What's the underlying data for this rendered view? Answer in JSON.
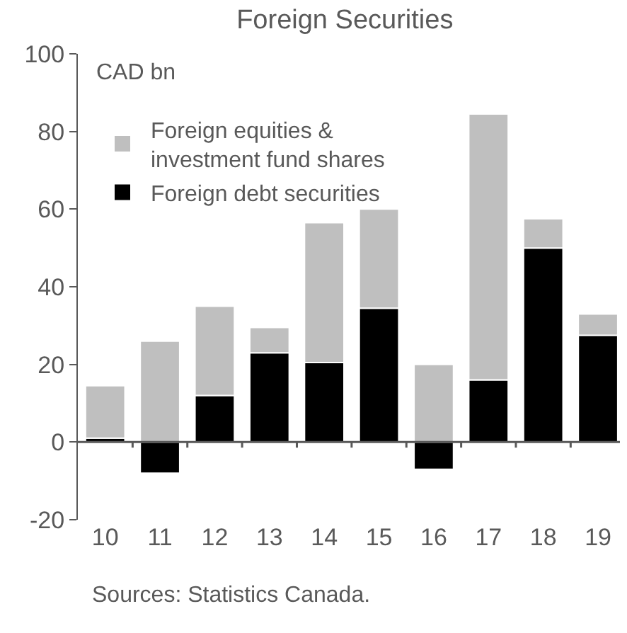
{
  "chart_data": {
    "type": "bar",
    "title": "Foreign Securities",
    "stacked": true,
    "categories": [
      "10",
      "11",
      "12",
      "13",
      "14",
      "15",
      "16",
      "17",
      "18",
      "19"
    ],
    "series": [
      {
        "name": "Foreign debt securities",
        "color": "#000000",
        "values": [
          1,
          -8,
          12,
          23,
          20.5,
          34.5,
          -7,
          16,
          50,
          27.5
        ]
      },
      {
        "name": "Foreign equities & investment fund shares",
        "color": "#bfbfbf",
        "values": [
          13.5,
          26,
          23,
          6.5,
          36,
          25.5,
          20,
          68.5,
          7.5,
          5.5
        ]
      }
    ],
    "ylim": [
      -20,
      100
    ],
    "yticks": [
      -20,
      0,
      20,
      40,
      60,
      80,
      100
    ],
    "annotations": [
      "CAD bn",
      "Sources: Statistics Canada."
    ],
    "legend": "top left"
  }
}
